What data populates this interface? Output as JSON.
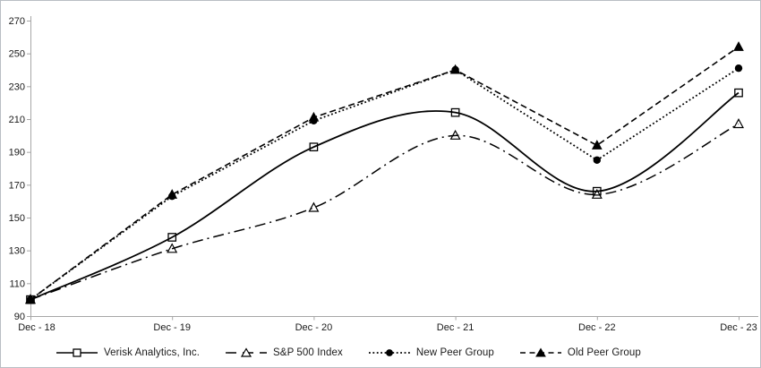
{
  "window": {
    "background": "#ffffff",
    "border_color": "#b9bec4"
  },
  "chart_data": {
    "type": "line",
    "title": "",
    "xlabel": "",
    "ylabel": "",
    "categories": [
      "Dec - 18",
      "Dec - 19",
      "Dec - 20",
      "Dec - 21",
      "Dec - 22",
      "Dec - 23"
    ],
    "series": [
      {
        "name": "Verisk Analytics, Inc.",
        "marker": "open-square",
        "line_style": "solid",
        "smooth": true,
        "values": [
          100,
          138,
          193,
          214,
          166,
          226
        ]
      },
      {
        "name": "S&P 500 Index",
        "marker": "open-triangle",
        "line_style": "dash-dot",
        "smooth": true,
        "values": [
          100,
          131,
          156,
          200,
          164,
          207
        ]
      },
      {
        "name": "New Peer Group",
        "marker": "filled-circle",
        "line_style": "dotted",
        "smooth": false,
        "values": [
          100,
          163,
          209,
          240,
          185,
          241
        ]
      },
      {
        "name": "Old Peer Group",
        "marker": "filled-triangle",
        "line_style": "dashed",
        "smooth": false,
        "values": [
          100,
          164,
          211,
          240,
          194,
          254
        ]
      }
    ],
    "ylim": [
      90,
      270
    ],
    "ytick_step": 20,
    "y_ticks": [
      90,
      110,
      130,
      150,
      170,
      190,
      210,
      230,
      250,
      270
    ],
    "grid": false,
    "legend_position": "bottom",
    "series_color": "#000000",
    "axis_color": "#a6a6a6",
    "label_color": "#1a1a1a"
  }
}
